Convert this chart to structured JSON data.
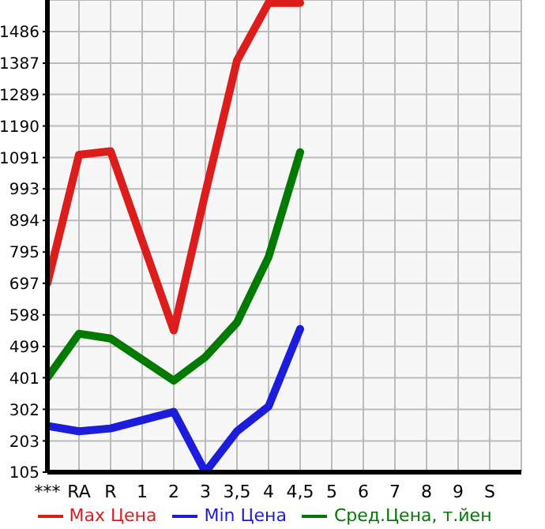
{
  "chart_data": {
    "type": "line",
    "categories": [
      "***",
      "RA",
      "R",
      "1",
      "2",
      "3",
      "3,5",
      "4",
      "4,5",
      "5",
      "6",
      "7",
      "8",
      "9",
      "S"
    ],
    "series": [
      {
        "name": "Max Цена",
        "color": "#dd1c1c",
        "values": [
          697,
          1100,
          1111,
          null,
          549,
          980,
          1395,
          1576,
          1576,
          null,
          null,
          null,
          null,
          null,
          null
        ]
      },
      {
        "name": "Min Цена",
        "color": "#1c1cdd",
        "values": [
          250,
          233,
          242,
          null,
          294,
          105,
          233,
          311,
          554,
          null,
          null,
          null,
          null,
          null,
          null
        ]
      },
      {
        "name": "Сред.Цена, т.йен",
        "color": "#007a00",
        "values": [
          401,
          539,
          524,
          null,
          392,
          466,
          574,
          779,
          1108,
          null,
          null,
          null,
          null,
          null,
          null
        ]
      }
    ],
    "ylim": [
      105,
      1585
    ],
    "yticks": [
      105,
      203,
      302,
      401,
      499,
      598,
      697,
      795,
      894,
      993,
      1091,
      1190,
      1289,
      1387,
      1486
    ],
    "grid": true,
    "legend": "bottom",
    "marker": "none",
    "line_style": "solid"
  }
}
